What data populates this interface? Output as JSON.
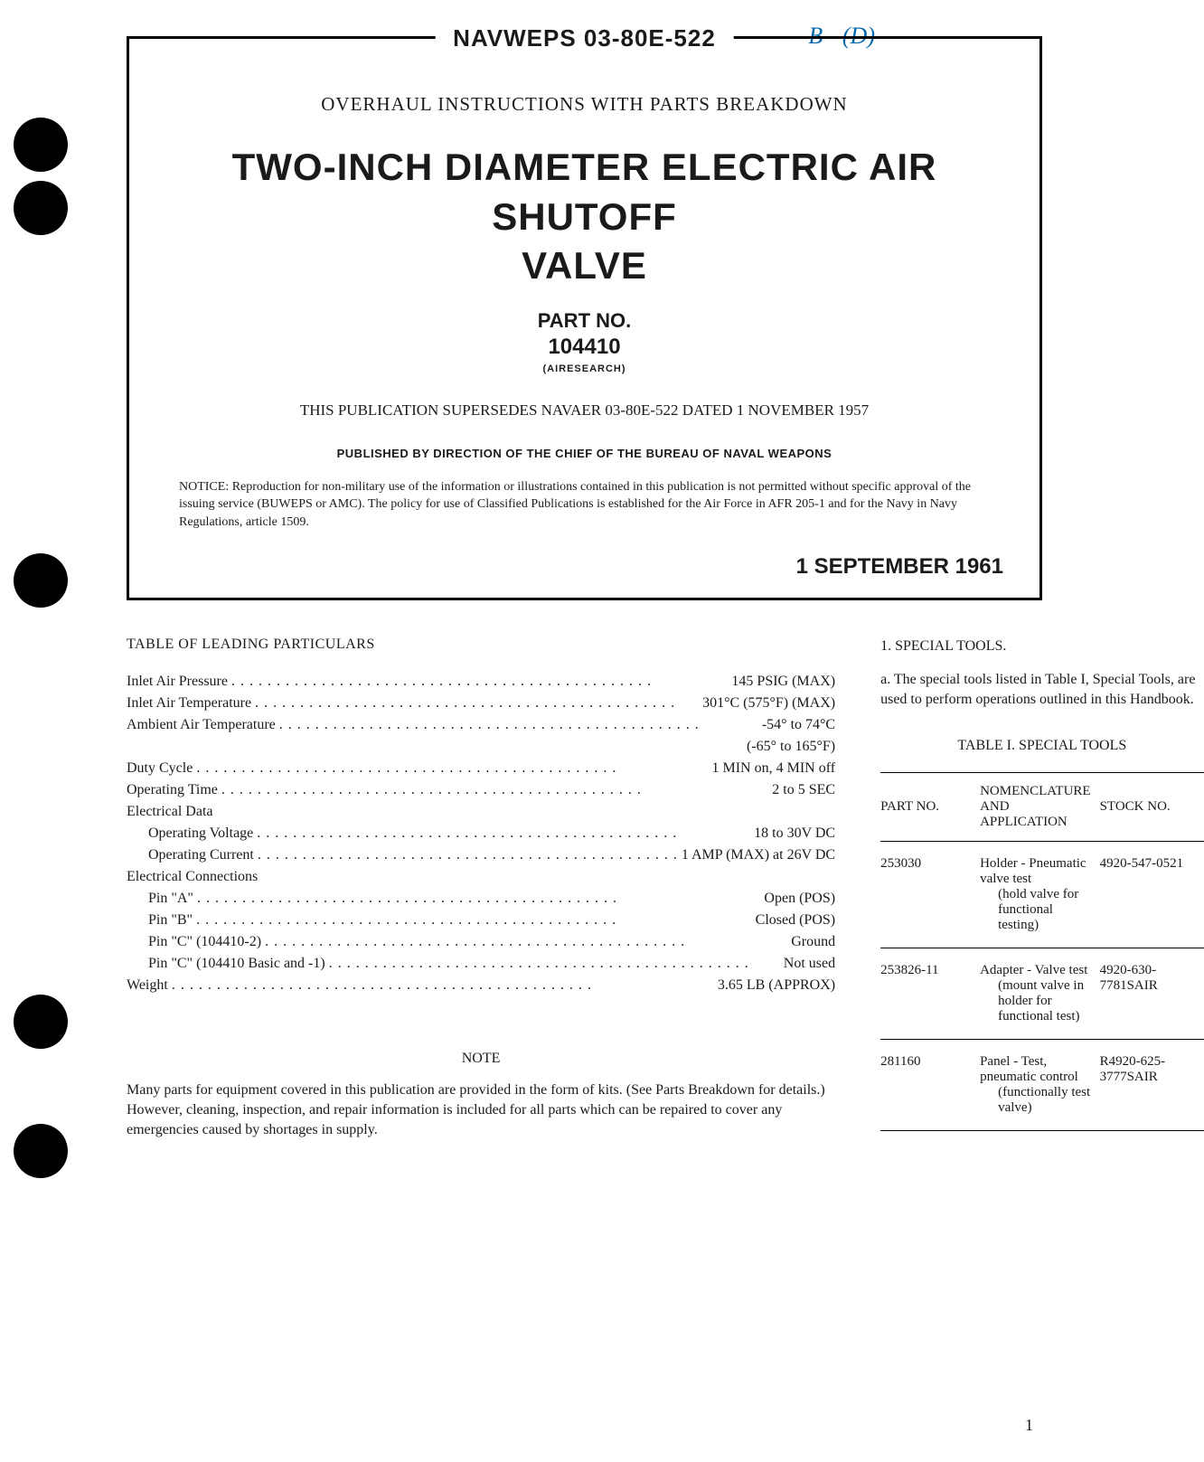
{
  "handwritten": "B - (D)",
  "header_label": "NAVWEPS 03-80E-522",
  "subtitle": "OVERHAUL INSTRUCTIONS WITH PARTS BREAKDOWN",
  "main_title_line1": "TWO-INCH DIAMETER ELECTRIC AIR SHUTOFF",
  "main_title_line2": "VALVE",
  "part_no_label": "PART NO.",
  "part_no": "104410",
  "manufacturer": "(AIRESEARCH)",
  "supersedes": "THIS PUBLICATION SUPERSEDES NAVAER 03-80E-522 DATED 1 NOVEMBER 1957",
  "published_by": "PUBLISHED BY DIRECTION OF THE CHIEF OF THE BUREAU OF NAVAL WEAPONS",
  "notice": "NOTICE: Reproduction for non-military use of the information or illustrations contained in this publication is not permitted without specific approval of the issuing service (BUWEPS or AMC). The policy for use of Classified Publications is established for the Air Force in AFR 205-1 and for the Navy in Navy Regulations, article 1509.",
  "date": "1 SEPTEMBER 1961",
  "table_leading_title": "TABLE OF LEADING PARTICULARS",
  "particulars": [
    {
      "label": "Inlet Air Pressure",
      "value": "145 PSIG (MAX)",
      "indent": 0
    },
    {
      "label": "Inlet Air Temperature",
      "value": "301°C (575°F) (MAX)",
      "indent": 0
    },
    {
      "label": "Ambient Air Temperature",
      "value": "-54° to 74°C",
      "indent": 0
    },
    {
      "label": "",
      "value": "(-65° to 165°F)",
      "indent": 0,
      "continuation": true
    },
    {
      "label": "Duty Cycle",
      "value": "1 MIN on, 4 MIN off",
      "indent": 0
    },
    {
      "label": "Operating Time",
      "value": "2 to 5 SEC",
      "indent": 0
    },
    {
      "label": "Electrical Data",
      "value": "",
      "indent": 0,
      "nodots": true
    },
    {
      "label": "Operating Voltage",
      "value": "18 to 30V DC",
      "indent": 1
    },
    {
      "label": "Operating Current",
      "value": "1 AMP (MAX) at 26V DC",
      "indent": 1
    },
    {
      "label": "Electrical Connections",
      "value": "",
      "indent": 0,
      "nodots": true
    },
    {
      "label": "Pin \"A\"",
      "value": "Open (POS)",
      "indent": 1
    },
    {
      "label": "Pin \"B\"",
      "value": "Closed (POS)",
      "indent": 1
    },
    {
      "label": "Pin \"C\" (104410-2)",
      "value": "Ground",
      "indent": 1
    },
    {
      "label": "Pin \"C\" (104410 Basic and -1)",
      "value": "Not used",
      "indent": 1
    },
    {
      "label": "Weight",
      "value": "3.65 LB (APPROX)",
      "indent": 0
    }
  ],
  "note_title": "NOTE",
  "note_body": "Many parts for equipment covered in this publication are provided in the form of kits. (See Parts Breakdown for details.) However, cleaning, inspection, and repair information is included for all parts which can be repaired to cover any emergencies caused by shortages in supply.",
  "special_tools_heading": "1. SPECIAL TOOLS.",
  "special_tools_para": "a.   The special tools listed in Table I, Special Tools, are used to perform operations outlined in this Handbook.",
  "table1_title": "TABLE I. SPECIAL TOOLS",
  "table1_headers": {
    "c1": "PART NO.",
    "c2_line1": "NOMENCLATURE AND",
    "c2_line2": "APPLICATION",
    "c3": "STOCK NO."
  },
  "table1_rows": [
    {
      "part_no": "253030",
      "nomenclature": "Holder - Pneumatic valve test",
      "application": "(hold valve for functional testing)",
      "stock_no": "4920-547-0521"
    },
    {
      "part_no": "253826-11",
      "nomenclature": "Adapter - Valve test",
      "application": "(mount valve in holder for functional test)",
      "stock_no": "4920-630-7781SAIR"
    },
    {
      "part_no": "281160",
      "nomenclature": "Panel - Test, pneumatic control",
      "application": "(functionally test valve)",
      "stock_no": "R4920-625-3777SAIR"
    }
  ],
  "page_number": "1"
}
